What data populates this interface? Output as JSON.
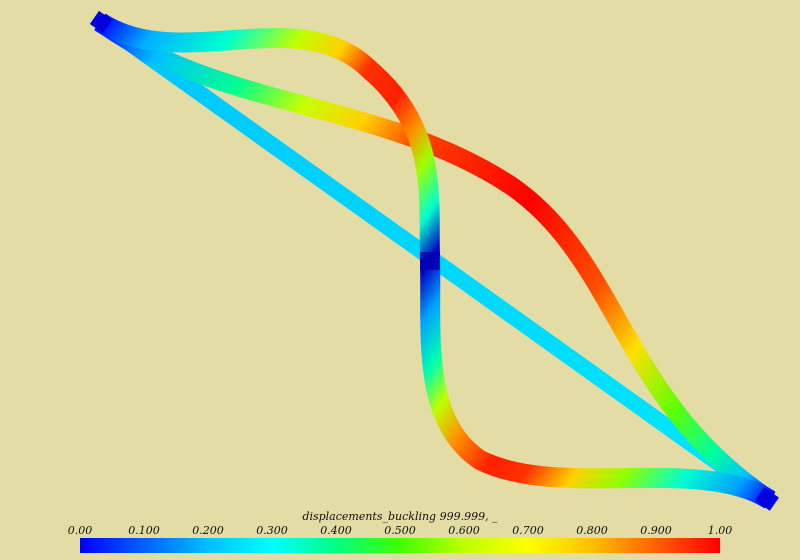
{
  "field_name": "displacements_buckling 999.999, _",
  "colorbar": {
    "tick_labels": [
      "0.00",
      "0.100",
      "0.200",
      "0.300",
      "0.400",
      "0.500",
      "0.600",
      "0.700",
      "0.800",
      "0.900",
      "1.00"
    ],
    "stops": [
      "#0000ff",
      "#0060ff",
      "#00bfff",
      "#00ffff",
      "#00ff80",
      "#40ff00",
      "#bfff00",
      "#ffff00",
      "#ffbf00",
      "#ff6000",
      "#ff0000"
    ]
  },
  "background_color": "#e3dca5"
}
